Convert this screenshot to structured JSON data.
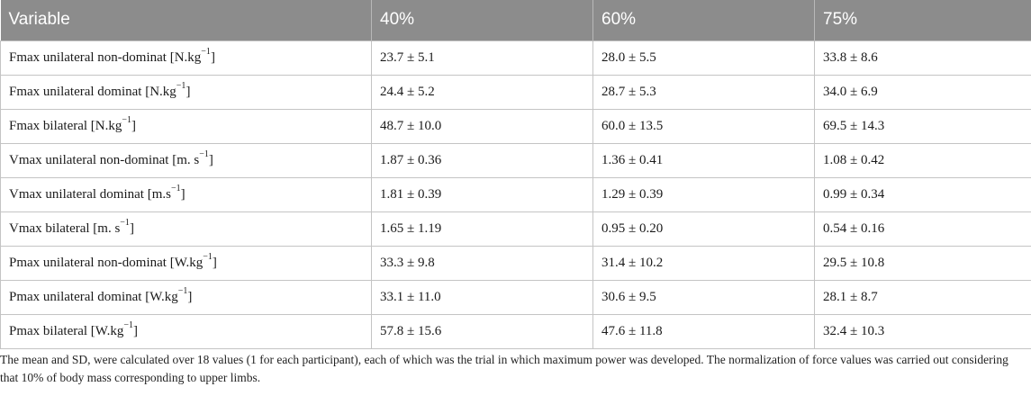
{
  "table": {
    "headers": [
      "Variable",
      "40%",
      "60%",
      "75%"
    ],
    "rows": [
      {
        "label": "Fmax unilateral non-dominat [N.kg",
        "sup": "−1",
        "close": "]",
        "v40": "23.7 ± 5.1",
        "v60": "28.0 ± 5.5",
        "v75": "33.8 ± 8.6"
      },
      {
        "label": "Fmax unilateral dominat [N.kg",
        "sup": "−1",
        "close": "]",
        "v40": "24.4 ± 5.2",
        "v60": "28.7 ± 5.3",
        "v75": "34.0 ± 6.9"
      },
      {
        "label": "Fmax bilateral [N.kg",
        "sup": "−1",
        "close": "]",
        "v40": "48.7 ± 10.0",
        "v60": "60.0 ± 13.5",
        "v75": "69.5 ± 14.3"
      },
      {
        "label": "Vmax unilateral non-dominat [m. s",
        "sup": "−1",
        "close": "]",
        "v40": "1.87 ± 0.36",
        "v60": "1.36 ± 0.41",
        "v75": "1.08 ± 0.42"
      },
      {
        "label": "Vmax unilateral dominat [m.s",
        "sup": "−1",
        "close": "]",
        "v40": "1.81 ± 0.39",
        "v60": "1.29 ± 0.39",
        "v75": "0.99 ± 0.34"
      },
      {
        "label": "Vmax bilateral [m. s",
        "sup": "−1",
        "close": "]",
        "v40": "1.65 ± 1.19",
        "v60": "0.95 ± 0.20",
        "v75": "0.54 ± 0.16"
      },
      {
        "label": "Pmax unilateral non-dominat [W.kg",
        "sup": "−1",
        "close": "]",
        "v40": "33.3 ± 9.8",
        "v60": "31.4 ± 10.2",
        "v75": "29.5 ± 10.8"
      },
      {
        "label": "Pmax unilateral dominat [W.kg",
        "sup": "−1",
        "close": "]",
        "v40": "33.1 ± 11.0",
        "v60": "30.6 ± 9.5",
        "v75": "28.1 ± 8.7"
      },
      {
        "label": "Pmax bilateral [W.kg",
        "sup": "−1",
        "close": "]",
        "v40": "57.8 ± 15.6",
        "v60": "47.6 ± 11.8",
        "v75": "32.4 ± 10.3"
      }
    ]
  },
  "footnote": "The mean and SD, were calculated over 18 values (1 for each participant), each of which was the trial in which maximum power was developed. The normalization of force values was carried out considering that 10% of body mass corresponding to upper limbs.",
  "colors": {
    "header_bg": "#8c8c8c",
    "header_text": "#ffffff",
    "border": "#c4c4c4"
  }
}
